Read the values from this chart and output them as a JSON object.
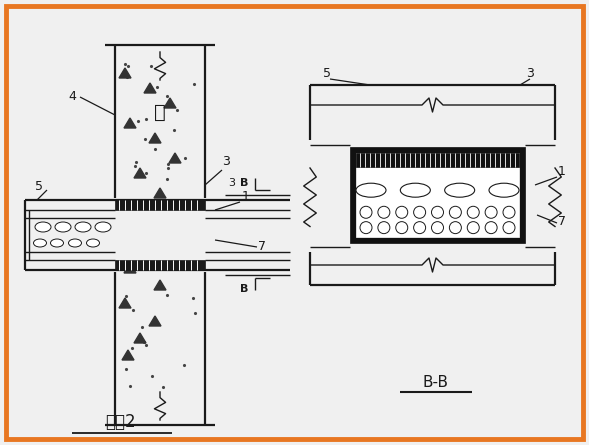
{
  "bg_color": "#f0f0f0",
  "border_color": "#e87722",
  "line_color": "#1a1a1a",
  "title_left": "方案2",
  "title_right": "B-B",
  "label_qiang": "墙"
}
